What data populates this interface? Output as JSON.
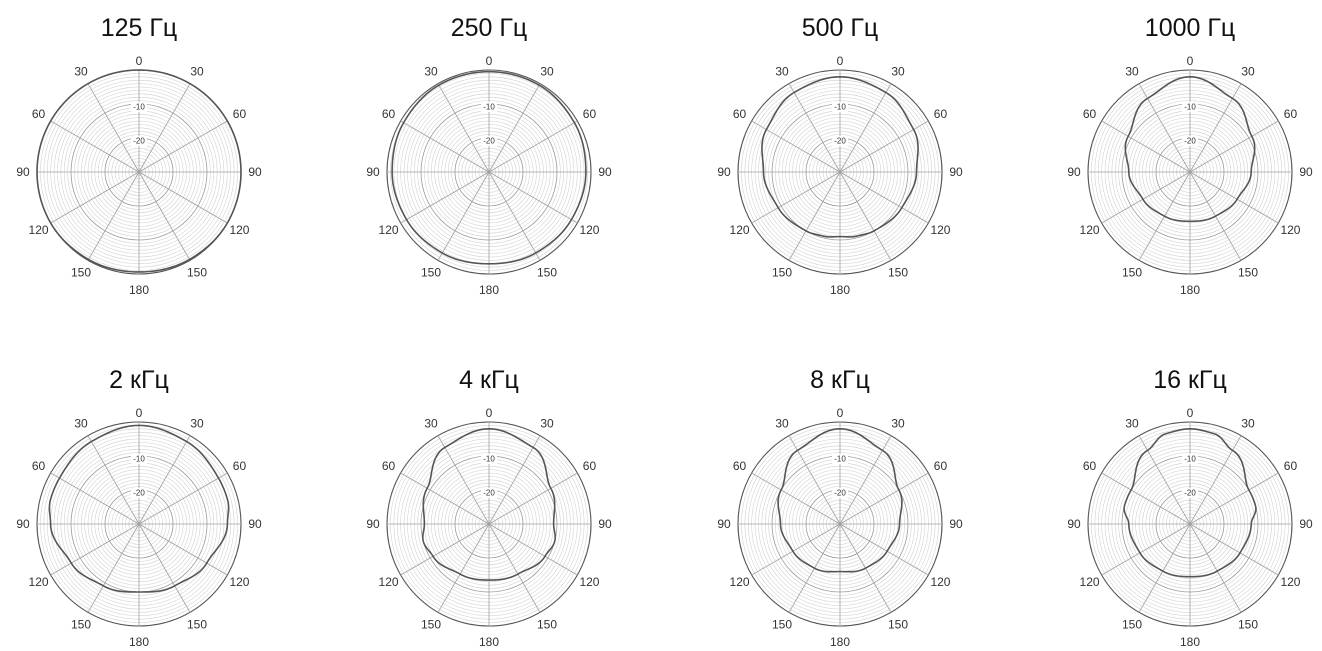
{
  "chart_data": [
    {
      "type": "polar",
      "title": "125 Гц",
      "angle_labels": [
        "0",
        "30",
        "60",
        "90",
        "120",
        "150",
        "180",
        "150",
        "120",
        "90",
        "60",
        "30"
      ],
      "radial_labels": [
        "-10",
        "-20"
      ],
      "rlim": [
        -30,
        0
      ],
      "angle_step_deg": 30,
      "series": [
        {
          "angles_deg": [
            0,
            30,
            60,
            90,
            120,
            150,
            180,
            210,
            240,
            270,
            300,
            330,
            360
          ],
          "values": [
            0,
            0,
            0,
            0,
            0,
            -0.3,
            -0.6,
            -0.3,
            0,
            0,
            0,
            0,
            0
          ]
        }
      ]
    },
    {
      "type": "polar",
      "title": "250 Гц",
      "angle_labels": [
        "0",
        "30",
        "60",
        "90",
        "120",
        "150",
        "180",
        "150",
        "120",
        "90",
        "60",
        "30"
      ],
      "radial_labels": [
        "-10",
        "-20"
      ],
      "rlim": [
        -30,
        0
      ],
      "angle_step_deg": 30,
      "series": [
        {
          "angles_deg": [
            0,
            30,
            60,
            90,
            120,
            150,
            180,
            210,
            240,
            270,
            300,
            330,
            360
          ],
          "values": [
            -0.5,
            -0.5,
            -1,
            -1.5,
            -2,
            -2.5,
            -3,
            -2.5,
            -2,
            -1.5,
            -1,
            -0.5,
            -0.5
          ]
        }
      ]
    },
    {
      "type": "polar",
      "title": "500 Гц",
      "angle_labels": [
        "0",
        "30",
        "60",
        "90",
        "120",
        "150",
        "180",
        "150",
        "120",
        "90",
        "60",
        "30"
      ],
      "radial_labels": [
        "-10",
        "-20"
      ],
      "rlim": [
        -30,
        0
      ],
      "angle_step_deg": 30,
      "series": [
        {
          "angles_deg": [
            0,
            30,
            60,
            90,
            120,
            150,
            165,
            180,
            195,
            210,
            240,
            270,
            300,
            330,
            360
          ],
          "values": [
            -2,
            -3,
            -5,
            -7.5,
            -9,
            -10,
            -10.5,
            -11,
            -10.5,
            -10,
            -9,
            -7.5,
            -5,
            -3,
            -2
          ]
        }
      ]
    },
    {
      "type": "polar",
      "title": "1000 Гц",
      "angle_labels": [
        "0",
        "30",
        "60",
        "90",
        "120",
        "150",
        "180",
        "150",
        "120",
        "90",
        "60",
        "30"
      ],
      "radial_labels": [
        "-10",
        "-20"
      ],
      "rlim": [
        -30,
        0
      ],
      "angle_step_deg": 30,
      "series": [
        {
          "angles_deg": [
            0,
            30,
            60,
            90,
            120,
            150,
            180,
            210,
            240,
            270,
            300,
            330,
            360
          ],
          "values": [
            -2,
            -5,
            -9,
            -12,
            -14,
            -15,
            -15.5,
            -15,
            -14,
            -12,
            -9,
            -5,
            -2
          ]
        }
      ]
    },
    {
      "type": "polar",
      "title": "2 кГц",
      "angle_labels": [
        "0",
        "30",
        "60",
        "90",
        "120",
        "150",
        "180",
        "150",
        "120",
        "90",
        "60",
        "30"
      ],
      "radial_labels": [
        "-10",
        "-20"
      ],
      "rlim": [
        -30,
        0
      ],
      "angle_step_deg": 30,
      "series": [
        {
          "angles_deg": [
            0,
            30,
            60,
            75,
            90,
            120,
            150,
            180,
            210,
            240,
            270,
            285,
            300,
            330,
            360
          ],
          "values": [
            -1,
            -2,
            -3,
            -3,
            -4,
            -7,
            -9,
            -10,
            -9,
            -7,
            -4,
            -3,
            -3,
            -2,
            -1
          ]
        }
      ]
    },
    {
      "type": "polar",
      "title": "4 кГц",
      "angle_labels": [
        "0",
        "30",
        "60",
        "90",
        "120",
        "150",
        "180",
        "150",
        "120",
        "90",
        "60",
        "30"
      ],
      "radial_labels": [
        "-10",
        "-20"
      ],
      "rlim": [
        -30,
        0
      ],
      "angle_step_deg": 30,
      "series": [
        {
          "angles_deg": [
            0,
            30,
            60,
            90,
            105,
            120,
            150,
            180,
            210,
            240,
            255,
            270,
            300,
            330,
            360
          ],
          "values": [
            -2,
            -4,
            -9,
            -11,
            -10,
            -11,
            -13,
            -13.5,
            -13,
            -11,
            -10,
            -11,
            -9,
            -4,
            -2
          ]
        }
      ]
    },
    {
      "type": "polar",
      "title": "8 кГц",
      "angle_labels": [
        "0",
        "30",
        "60",
        "90",
        "120",
        "150",
        "180",
        "150",
        "120",
        "90",
        "60",
        "30"
      ],
      "radial_labels": [
        "-10",
        "-20"
      ],
      "rlim": [
        -30,
        0
      ],
      "angle_step_deg": 30,
      "series": [
        {
          "angles_deg": [
            0,
            30,
            60,
            90,
            120,
            150,
            180,
            210,
            240,
            270,
            300,
            330,
            360
          ],
          "values": [
            -2,
            -5,
            -10,
            -12.5,
            -14,
            -15,
            -16,
            -15,
            -14,
            -12.5,
            -10,
            -5,
            -2
          ]
        }
      ]
    },
    {
      "type": "polar",
      "title": "16 кГц",
      "angle_labels": [
        "0",
        "30",
        "60",
        "90",
        "120",
        "150",
        "180",
        "150",
        "120",
        "90",
        "60",
        "30"
      ],
      "radial_labels": [
        "-10",
        "-20"
      ],
      "rlim": [
        -30,
        0
      ],
      "angle_step_deg": 30,
      "series": [
        {
          "angles_deg": [
            0,
            15,
            30,
            60,
            75,
            90,
            120,
            150,
            180,
            210,
            240,
            270,
            285,
            300,
            330,
            345,
            360
          ],
          "values": [
            -2,
            -2.5,
            -5,
            -10,
            -10,
            -12,
            -13,
            -14,
            -14.5,
            -14,
            -13,
            -12,
            -10,
            -10,
            -5,
            -2.5,
            -2
          ]
        }
      ]
    }
  ]
}
